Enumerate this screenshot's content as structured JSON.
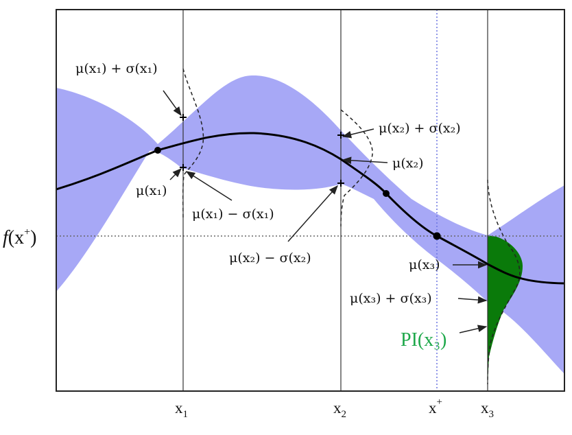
{
  "diagram": {
    "colors": {
      "band": "#a7a8f6",
      "mean": "#000000",
      "pi_fill": "#0a7a0a",
      "pi_text": "#1ea84a",
      "xplus_line": "#6a74e0"
    },
    "y_label": "f(x⁺)",
    "y_label_parts": {
      "f": "f",
      "open": "(x",
      "sup": "+",
      "close": ")"
    },
    "x_ticks": [
      {
        "id": "x1",
        "base": "x",
        "sub": "1"
      },
      {
        "id": "x2",
        "base": "x",
        "sub": "2"
      },
      {
        "id": "xplus",
        "base": "x",
        "sup": "+"
      },
      {
        "id": "x3",
        "base": "x",
        "sub": "3"
      }
    ],
    "annotations": {
      "mu_plus_sigma_x1": "μ(x₁) + σ(x₁)",
      "mu_x1": "μ(x₁)",
      "mu_minus_sigma_x1": "μ(x₁) − σ(x₁)",
      "mu_plus_sigma_x2": "μ(x₂) + σ(x₂)",
      "mu_x2": "μ(x₂)",
      "mu_minus_sigma_x2": "μ(x₂) − σ(x₂)",
      "mu_x3": "μ(x₃)",
      "mu_plus_sigma_x3": "μ(x₃) + σ(x₃)",
      "pi_x3": "PI(x₃)"
    },
    "icons": [
      "arrow-icon"
    ]
  }
}
